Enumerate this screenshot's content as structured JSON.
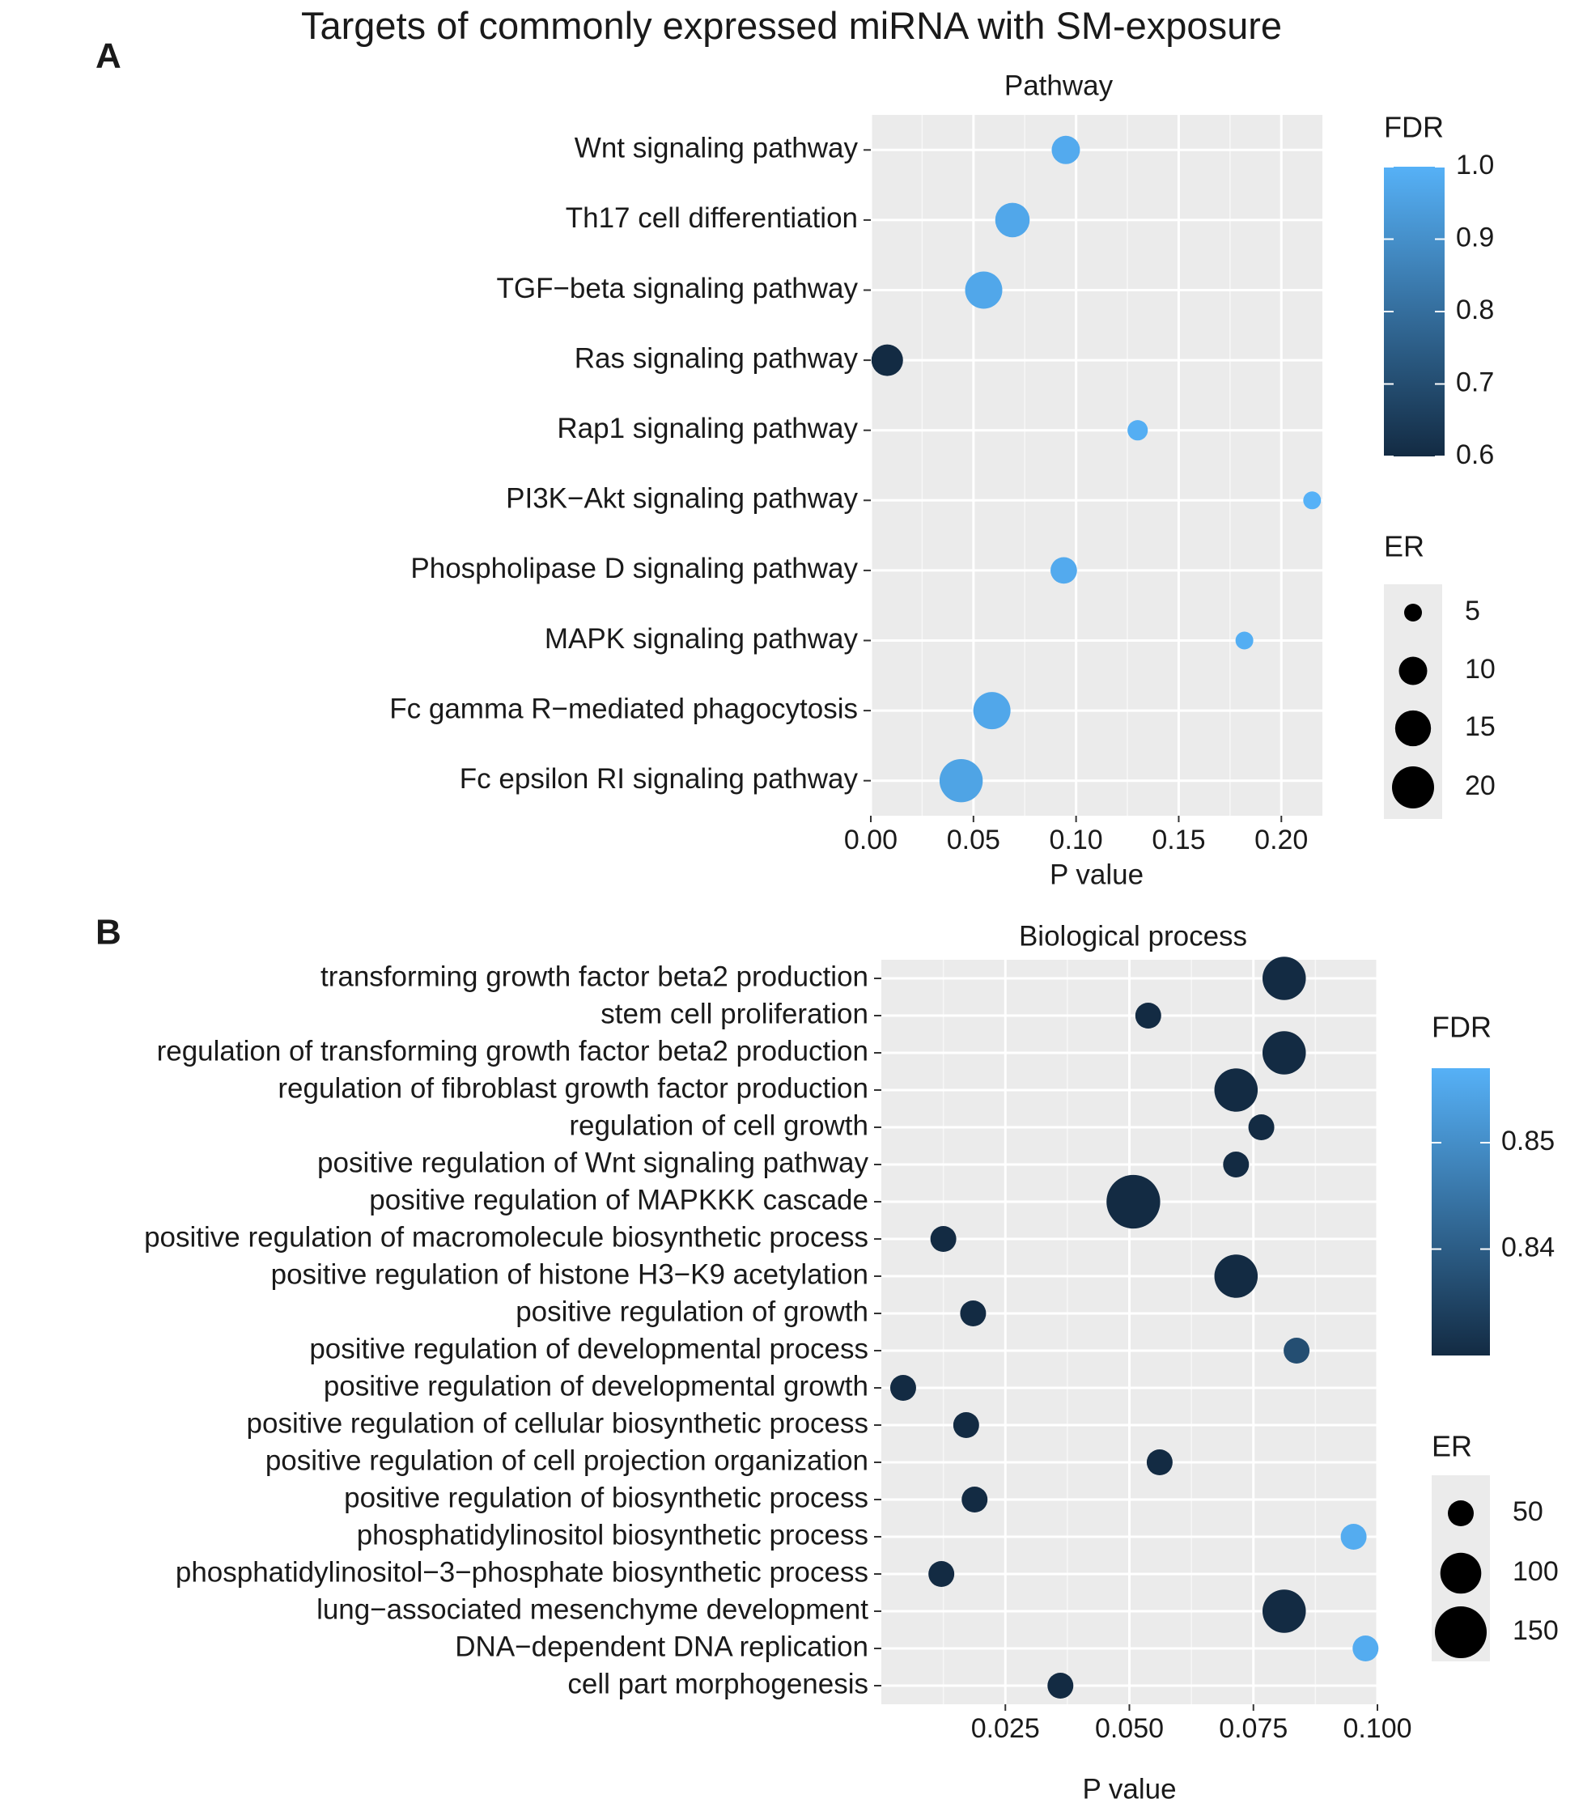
{
  "figure_title": "Targets of commonly expressed miRNA with SM-exposure",
  "chart_data": [
    {
      "panel_label": "A",
      "type": "scatter",
      "title": "Pathway",
      "xlabel": "P value",
      "ylabel": "",
      "xlim": [
        0.0,
        0.22
      ],
      "xticks": [
        0.0,
        0.05,
        0.1,
        0.15,
        0.2
      ],
      "xtick_labels": [
        "0.00",
        "0.05",
        "0.10",
        "0.15",
        "0.20"
      ],
      "grid": true,
      "categories": [
        "Wnt signaling pathway",
        "Th17 cell differentiation",
        "TGF−beta signaling pathway",
        "Ras signaling pathway",
        "Rap1 signaling pathway",
        "PI3K−Akt signaling pathway",
        "Phospholipase D signaling pathway",
        "MAPK signaling pathway",
        "Fc gamma R−mediated phagocytosis",
        "Fc epsilon RI signaling pathway"
      ],
      "points": [
        {
          "term": "Wnt signaling pathway",
          "p": 0.095,
          "er": 10,
          "fdr": 0.98
        },
        {
          "term": "Th17 cell differentiation",
          "p": 0.069,
          "er": 14,
          "fdr": 0.97
        },
        {
          "term": "TGF−beta signaling pathway",
          "p": 0.055,
          "er": 16,
          "fdr": 0.97
        },
        {
          "term": "Ras signaling pathway",
          "p": 0.008,
          "er": 12,
          "fdr": 0.6
        },
        {
          "term": "Rap1 signaling pathway",
          "p": 0.13,
          "er": 6,
          "fdr": 0.99
        },
        {
          "term": "PI3K−Akt signaling pathway",
          "p": 0.215,
          "er": 5,
          "fdr": 1.0
        },
        {
          "term": "Phospholipase D signaling pathway",
          "p": 0.094,
          "er": 9,
          "fdr": 0.98
        },
        {
          "term": "MAPK signaling pathway",
          "p": 0.182,
          "er": 5,
          "fdr": 0.99
        },
        {
          "term": "Fc gamma R−mediated phagocytosis",
          "p": 0.059,
          "er": 16,
          "fdr": 0.97
        },
        {
          "term": "Fc epsilon RI signaling pathway",
          "p": 0.044,
          "er": 21,
          "fdr": 0.96
        }
      ],
      "color_legend": {
        "title": "FDR",
        "min": 0.6,
        "max": 1.0,
        "ticks": [
          0.6,
          0.7,
          0.8,
          0.9,
          1.0
        ],
        "tick_labels": [
          "0.6",
          "0.7",
          "0.8",
          "0.9",
          "1.0"
        ],
        "low_color": "#132b43",
        "high_color": "#56b1f7"
      },
      "size_legend": {
        "title": "ER",
        "values": [
          5,
          10,
          15,
          20
        ],
        "labels": [
          "5",
          "10",
          "15",
          "20"
        ]
      }
    },
    {
      "panel_label": "B",
      "type": "scatter",
      "title": "Biological process",
      "xlabel": "P value",
      "ylabel": "",
      "xlim": [
        0.0,
        0.1
      ],
      "xticks": [
        0.025,
        0.05,
        0.075,
        0.1
      ],
      "xtick_labels": [
        "0.025",
        "0.050",
        "0.075",
        "0.100"
      ],
      "grid": true,
      "categories": [
        "transforming growth factor beta2 production",
        "stem cell proliferation",
        "regulation of transforming growth factor beta2 production",
        "regulation of fibroblast growth factor production",
        "regulation of cell growth",
        "positive regulation of Wnt signaling pathway",
        "positive regulation of MAPKKK cascade",
        "positive regulation of macromolecule biosynthetic process",
        "positive regulation of histone H3−K9 acetylation",
        "positive regulation of growth",
        "positive regulation of developmental process",
        "positive regulation of developmental growth",
        "positive regulation of cellular biosynthetic process",
        "positive regulation of cell projection organization",
        "positive regulation of biosynthetic process",
        "phosphatidylinositol biosynthetic process",
        "phosphatidylinositol−3−phosphate biosynthetic process",
        "lung−associated mesenchyme development",
        "DNA−dependent DNA replication",
        "cell part morphogenesis"
      ],
      "points": [
        {
          "term": "transforming growth factor beta2 production",
          "p": 0.0812,
          "er": 110,
          "fdr": 0.83
        },
        {
          "term": "stem cell proliferation",
          "p": 0.0538,
          "er": 40,
          "fdr": 0.83
        },
        {
          "term": "regulation of transforming growth factor beta2 production",
          "p": 0.0812,
          "er": 110,
          "fdr": 0.83
        },
        {
          "term": "regulation of fibroblast growth factor production",
          "p": 0.0715,
          "er": 110,
          "fdr": 0.83
        },
        {
          "term": "regulation of cell growth",
          "p": 0.0766,
          "er": 40,
          "fdr": 0.83
        },
        {
          "term": "positive regulation of Wnt signaling pathway",
          "p": 0.0715,
          "er": 40,
          "fdr": 0.83
        },
        {
          "term": "positive regulation of MAPKKK cascade",
          "p": 0.0508,
          "er": 160,
          "fdr": 0.83
        },
        {
          "term": "positive regulation of macromolecule biosynthetic process",
          "p": 0.0125,
          "er": 40,
          "fdr": 0.83
        },
        {
          "term": "positive regulation of histone H3−K9 acetylation",
          "p": 0.0715,
          "er": 110,
          "fdr": 0.83
        },
        {
          "term": "positive regulation of growth",
          "p": 0.0185,
          "er": 40,
          "fdr": 0.83
        },
        {
          "term": "positive regulation of developmental process",
          "p": 0.0837,
          "er": 40,
          "fdr": 0.837
        },
        {
          "term": "positive regulation of developmental growth",
          "p": 0.0044,
          "er": 40,
          "fdr": 0.83
        },
        {
          "term": "positive regulation of cellular biosynthetic process",
          "p": 0.0171,
          "er": 40,
          "fdr": 0.83
        },
        {
          "term": "positive regulation of cell projection organization",
          "p": 0.0561,
          "er": 40,
          "fdr": 0.83
        },
        {
          "term": "positive regulation of biosynthetic process",
          "p": 0.0188,
          "er": 40,
          "fdr": 0.83
        },
        {
          "term": "phosphatidylinositol biosynthetic process",
          "p": 0.0952,
          "er": 40,
          "fdr": 0.856
        },
        {
          "term": "phosphatidylinositol−3−phosphate biosynthetic process",
          "p": 0.0121,
          "er": 40,
          "fdr": 0.83
        },
        {
          "term": "lung−associated mesenchyme development",
          "p": 0.0812,
          "er": 110,
          "fdr": 0.83
        },
        {
          "term": "DNA−dependent DNA replication",
          "p": 0.0976,
          "er": 40,
          "fdr": 0.856
        },
        {
          "term": "cell part morphogenesis",
          "p": 0.0361,
          "er": 40,
          "fdr": 0.83
        }
      ],
      "color_legend": {
        "title": "FDR",
        "min": 0.83,
        "max": 0.857,
        "ticks": [
          0.84,
          0.85
        ],
        "tick_labels": [
          "0.84",
          "0.85"
        ],
        "low_color": "#132b43",
        "high_color": "#56b1f7"
      },
      "size_legend": {
        "title": "ER",
        "values": [
          50,
          100,
          150
        ],
        "labels": [
          "50",
          "100",
          "150"
        ]
      }
    }
  ]
}
